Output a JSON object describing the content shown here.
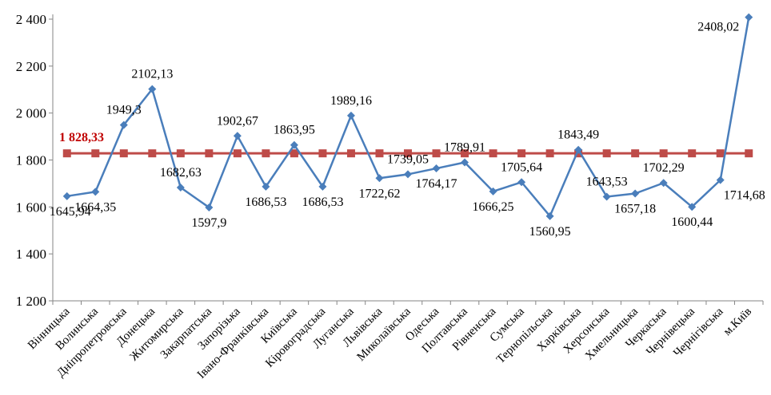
{
  "chart_data": {
    "type": "line",
    "title": "",
    "xlabel": "",
    "ylabel": "",
    "ylim": [
      1200,
      2400
    ],
    "yticks": [
      1200,
      1400,
      1600,
      1800,
      2000,
      2200,
      2400
    ],
    "ytick_labels": [
      "1 200",
      "1 400",
      "1 600",
      "1 800",
      "2 000",
      "2 200",
      "2 400"
    ],
    "grid": false,
    "categories": [
      "Вінницька",
      "Волинська",
      "Дніпропетровська",
      "Донецька",
      "Житомирська",
      "Закарпатська",
      "Запорізька",
      "Івано-Франківська",
      "Київська",
      "Кіровоградська",
      "Луганська",
      "Львівська",
      "Миколаївська",
      "Одеська",
      "Полтавська",
      "Рівненська",
      "Сумська",
      "Тернопільська",
      "Харківська",
      "Херсонська",
      "Хмельницька",
      "Черкаська",
      "Чернівецька",
      "Чернігівська",
      "м.Київ"
    ],
    "series": [
      {
        "values": [
          1645.94,
          1664.35,
          1949.3,
          2102.13,
          1682.63,
          1597.9,
          1902.67,
          1686.53,
          1863.95,
          1686.53,
          1989.16,
          1722.62,
          1739.05,
          1764.17,
          1789.91,
          1666.25,
          1705.64,
          1560.95,
          1843.49,
          1643.53,
          1657.18,
          1702.29,
          1600.44,
          1714.68,
          2408.02
        ],
        "labels": [
          "1645,94",
          "1664,35",
          "1949,3",
          "2102,13",
          "1682,63",
          "1597,9",
          "1902,67",
          "1686,53",
          "1863,95",
          "1686,53",
          "1989,16",
          "1722,62",
          "1739,05",
          "1764,17",
          "1789,91",
          "1666,25",
          "1705,64",
          "1560,95",
          "1843,49",
          "1643,53",
          "1657,18",
          "1702,29",
          "1600,44",
          "1714,68",
          "2408,02"
        ],
        "color": "#4A7EBB",
        "marker": "diamond"
      },
      {
        "values": [
          1828.33,
          1828.33,
          1828.33,
          1828.33,
          1828.33,
          1828.33,
          1828.33,
          1828.33,
          1828.33,
          1828.33,
          1828.33,
          1828.33,
          1828.33,
          1828.33,
          1828.33,
          1828.33,
          1828.33,
          1828.33,
          1828.33,
          1828.33,
          1828.33,
          1828.33,
          1828.33,
          1828.33,
          1828.33
        ],
        "label": "1 828,33",
        "color": "#BE4B48",
        "label_color": "#C00000",
        "marker": "square"
      }
    ]
  }
}
